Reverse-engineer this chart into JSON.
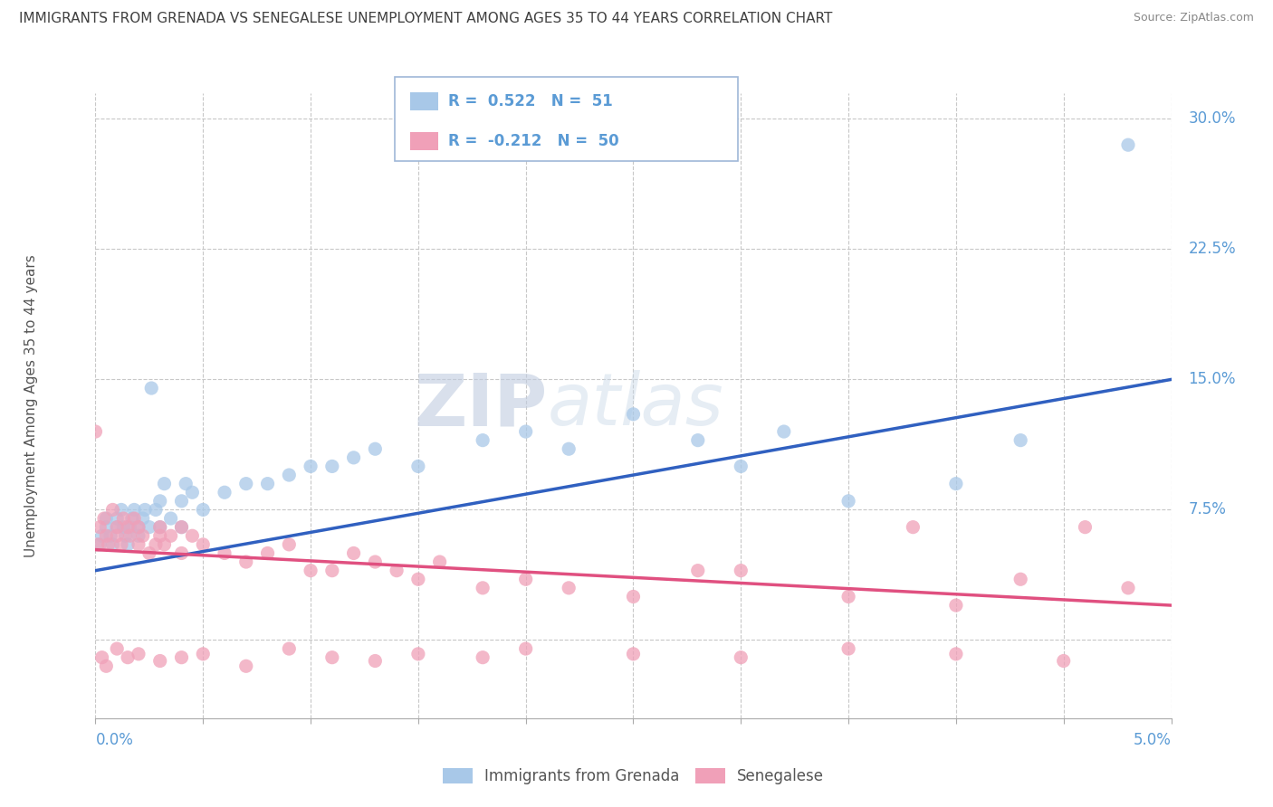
{
  "title": "IMMIGRANTS FROM GRENADA VS SENEGALESE UNEMPLOYMENT AMONG AGES 35 TO 44 YEARS CORRELATION CHART",
  "source": "Source: ZipAtlas.com",
  "ylabel": "Unemployment Among Ages 35 to 44 years",
  "xmin": 0.0,
  "xmax": 0.05,
  "ymin": -0.045,
  "ymax": 0.315,
  "blue_color": "#a8c8e8",
  "pink_color": "#f0a0b8",
  "blue_line_color": "#3060c0",
  "pink_line_color": "#e05080",
  "legend_blue_r_val": "0.522",
  "legend_blue_n_val": "51",
  "legend_pink_r_val": "-0.212",
  "legend_pink_n_val": "50",
  "watermark_zip": "ZIP",
  "watermark_atlas": "atlas",
  "grid_color": "#c8c8c8",
  "bg_color": "#ffffff",
  "title_color": "#404040",
  "axis_label_color": "#5b9bd5",
  "tick_color": "#5b9bd5",
  "blue_scatter_x": [
    0.0002,
    0.0003,
    0.0005,
    0.0005,
    0.0007,
    0.0008,
    0.001,
    0.001,
    0.0012,
    0.0013,
    0.0014,
    0.0015,
    0.0016,
    0.0017,
    0.0018,
    0.002,
    0.002,
    0.0022,
    0.0023,
    0.0025,
    0.0026,
    0.0028,
    0.003,
    0.003,
    0.0032,
    0.0035,
    0.004,
    0.004,
    0.0042,
    0.0045,
    0.005,
    0.006,
    0.007,
    0.008,
    0.009,
    0.01,
    0.011,
    0.012,
    0.013,
    0.015,
    0.018,
    0.02,
    0.022,
    0.025,
    0.028,
    0.03,
    0.032,
    0.035,
    0.04,
    0.043,
    0.048
  ],
  "blue_scatter_y": [
    0.055,
    0.06,
    0.065,
    0.07,
    0.06,
    0.055,
    0.065,
    0.07,
    0.075,
    0.065,
    0.06,
    0.055,
    0.065,
    0.07,
    0.075,
    0.065,
    0.06,
    0.07,
    0.075,
    0.065,
    0.145,
    0.075,
    0.065,
    0.08,
    0.09,
    0.07,
    0.065,
    0.08,
    0.09,
    0.085,
    0.075,
    0.085,
    0.09,
    0.09,
    0.095,
    0.1,
    0.1,
    0.105,
    0.11,
    0.1,
    0.115,
    0.12,
    0.11,
    0.13,
    0.115,
    0.1,
    0.12,
    0.08,
    0.09,
    0.115,
    0.285
  ],
  "pink_scatter_x": [
    0.0001,
    0.0002,
    0.0004,
    0.0005,
    0.0006,
    0.0008,
    0.001,
    0.001,
    0.0012,
    0.0013,
    0.0015,
    0.0016,
    0.0018,
    0.002,
    0.002,
    0.0022,
    0.0025,
    0.0028,
    0.003,
    0.003,
    0.0032,
    0.0035,
    0.004,
    0.004,
    0.0045,
    0.005,
    0.006,
    0.007,
    0.008,
    0.009,
    0.01,
    0.011,
    0.012,
    0.013,
    0.014,
    0.015,
    0.016,
    0.018,
    0.02,
    0.022,
    0.025,
    0.028,
    0.03,
    0.035,
    0.038,
    0.04,
    0.043,
    0.046,
    0.048,
    0.0
  ],
  "pink_scatter_y": [
    0.055,
    0.065,
    0.07,
    0.06,
    0.055,
    0.075,
    0.065,
    0.06,
    0.055,
    0.07,
    0.065,
    0.06,
    0.07,
    0.055,
    0.065,
    0.06,
    0.05,
    0.055,
    0.065,
    0.06,
    0.055,
    0.06,
    0.065,
    0.05,
    0.06,
    0.055,
    0.05,
    0.045,
    0.05,
    0.055,
    0.04,
    0.04,
    0.05,
    0.045,
    0.04,
    0.035,
    0.045,
    0.03,
    0.035,
    0.03,
    0.025,
    0.04,
    0.04,
    0.025,
    0.065,
    0.02,
    0.035,
    0.065,
    0.03,
    0.12
  ],
  "pink_scatter_x2": [
    0.0003,
    0.0005,
    0.001,
    0.0015,
    0.002,
    0.003,
    0.004,
    0.005,
    0.007,
    0.009,
    0.011,
    0.013,
    0.015,
    0.018,
    0.02,
    0.025,
    0.03,
    0.035,
    0.04,
    0.045
  ],
  "pink_scatter_y2": [
    -0.01,
    -0.015,
    -0.005,
    -0.01,
    -0.008,
    -0.012,
    -0.01,
    -0.008,
    -0.015,
    -0.005,
    -0.01,
    -0.012,
    -0.008,
    -0.01,
    -0.005,
    -0.008,
    -0.01,
    -0.005,
    -0.008,
    -0.012
  ]
}
